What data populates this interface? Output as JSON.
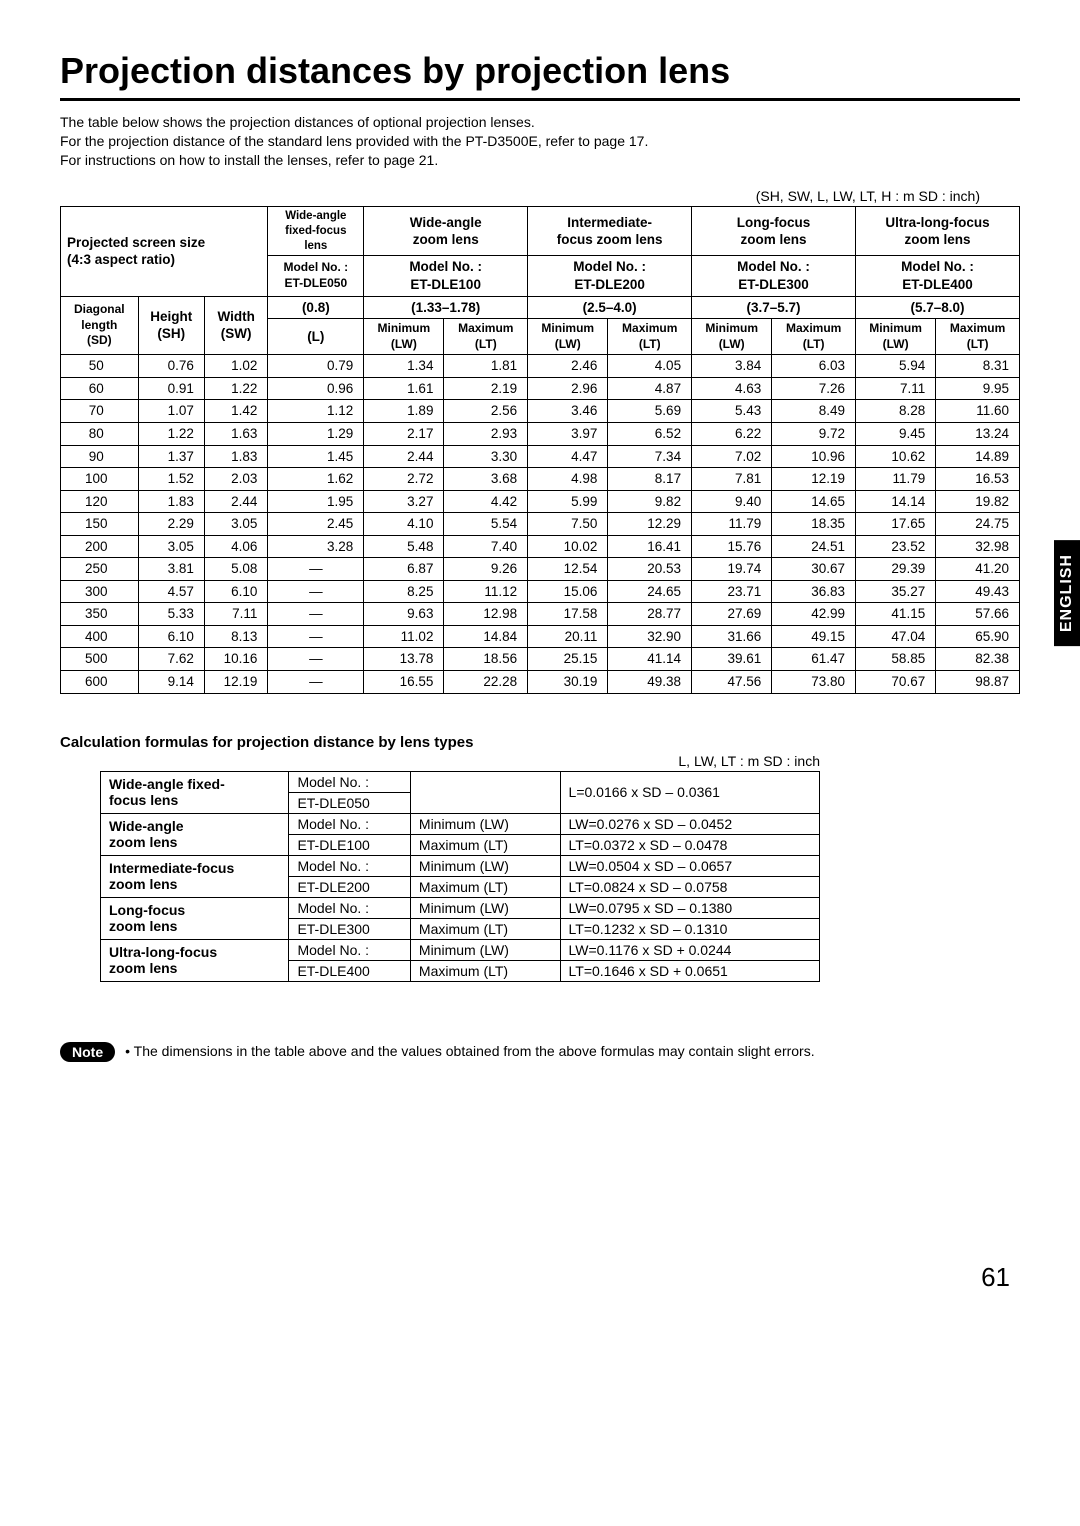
{
  "title": "Projection distances by projection lens",
  "intro_lines": [
    "The table below shows the projection distances of optional projection lenses.",
    "For the projection distance of the standard lens provided with the PT-D3500E, refer to page 17.",
    "For instructions on how to install the lenses, refer to page 21."
  ],
  "unit_note_main": "(SH, SW, L, LW, LT, H : m    SD : inch)",
  "side_tab": "ENGLISH",
  "page_number": "61",
  "main_table": {
    "lens_groups": [
      {
        "name_line1": "Wide-angle",
        "name_line2": "fixed-focus",
        "name_line3": "lens",
        "model_label": "Model No. :",
        "model": "ET-DLE050",
        "range": "(0.8)",
        "sub": [
          "(L)"
        ]
      },
      {
        "name_line1": "Wide-angle",
        "name_line2": "zoom lens",
        "model_label": "Model No. :",
        "model": "ET-DLE100",
        "range": "(1.33–1.78)",
        "sub": [
          "Minimum",
          "Maximum"
        ],
        "sub2": [
          "(LW)",
          "(LT)"
        ]
      },
      {
        "name_line1": "Intermediate-",
        "name_line2": "focus zoom lens",
        "model_label": "Model No. :",
        "model": "ET-DLE200",
        "range": "(2.5–4.0)",
        "sub": [
          "Minimum",
          "Maximum"
        ],
        "sub2": [
          "(LW)",
          "(LT)"
        ]
      },
      {
        "name_line1": "Long-focus",
        "name_line2": "zoom lens",
        "model_label": "Model No. :",
        "model": "ET-DLE300",
        "range": "(3.7–5.7)",
        "sub": [
          "Minimum",
          "Maximum"
        ],
        "sub2": [
          "(LW)",
          "(LT)"
        ]
      },
      {
        "name_line1": "Ultra-long-focus",
        "name_line2": "zoom lens",
        "model_label": "Model No. :",
        "model": "ET-DLE400",
        "range": "(5.7–8.0)",
        "sub": [
          "Minimum",
          "Maximum"
        ],
        "sub2": [
          "(LW)",
          "(LT)"
        ]
      }
    ],
    "screen_header_line1": "Projected screen size",
    "screen_header_line2": "(4:3 aspect ratio)",
    "screen_sub": {
      "diag_l1": "Diagonal",
      "diag_l2": "length",
      "diag_l3": "(SD)",
      "h_l1": "Height",
      "h_l2": "(SH)",
      "w_l1": "Width",
      "w_l2": "(SW)"
    },
    "rows": [
      {
        "sd": "50",
        "sh": "0.76",
        "sw": "1.02",
        "l": "0.79",
        "v": [
          "1.34",
          "1.81",
          "2.46",
          "4.05",
          "3.84",
          "6.03",
          "5.94",
          "8.31"
        ]
      },
      {
        "sd": "60",
        "sh": "0.91",
        "sw": "1.22",
        "l": "0.96",
        "v": [
          "1.61",
          "2.19",
          "2.96",
          "4.87",
          "4.63",
          "7.26",
          "7.11",
          "9.95"
        ]
      },
      {
        "sd": "70",
        "sh": "1.07",
        "sw": "1.42",
        "l": "1.12",
        "v": [
          "1.89",
          "2.56",
          "3.46",
          "5.69",
          "5.43",
          "8.49",
          "8.28",
          "11.60"
        ]
      },
      {
        "sd": "80",
        "sh": "1.22",
        "sw": "1.63",
        "l": "1.29",
        "v": [
          "2.17",
          "2.93",
          "3.97",
          "6.52",
          "6.22",
          "9.72",
          "9.45",
          "13.24"
        ]
      },
      {
        "sd": "90",
        "sh": "1.37",
        "sw": "1.83",
        "l": "1.45",
        "v": [
          "2.44",
          "3.30",
          "4.47",
          "7.34",
          "7.02",
          "10.96",
          "10.62",
          "14.89"
        ]
      },
      {
        "sd": "100",
        "sh": "1.52",
        "sw": "2.03",
        "l": "1.62",
        "v": [
          "2.72",
          "3.68",
          "4.98",
          "8.17",
          "7.81",
          "12.19",
          "11.79",
          "16.53"
        ]
      },
      {
        "sd": "120",
        "sh": "1.83",
        "sw": "2.44",
        "l": "1.95",
        "v": [
          "3.27",
          "4.42",
          "5.99",
          "9.82",
          "9.40",
          "14.65",
          "14.14",
          "19.82"
        ]
      },
      {
        "sd": "150",
        "sh": "2.29",
        "sw": "3.05",
        "l": "2.45",
        "v": [
          "4.10",
          "5.54",
          "7.50",
          "12.29",
          "11.79",
          "18.35",
          "17.65",
          "24.75"
        ]
      },
      {
        "sd": "200",
        "sh": "3.05",
        "sw": "4.06",
        "l": "3.28",
        "v": [
          "5.48",
          "7.40",
          "10.02",
          "16.41",
          "15.76",
          "24.51",
          "23.52",
          "32.98"
        ]
      },
      {
        "sd": "250",
        "sh": "3.81",
        "sw": "5.08",
        "l": "—",
        "v": [
          "6.87",
          "9.26",
          "12.54",
          "20.53",
          "19.74",
          "30.67",
          "29.39",
          "41.20"
        ]
      },
      {
        "sd": "300",
        "sh": "4.57",
        "sw": "6.10",
        "l": "—",
        "v": [
          "8.25",
          "11.12",
          "15.06",
          "24.65",
          "23.71",
          "36.83",
          "35.27",
          "49.43"
        ]
      },
      {
        "sd": "350",
        "sh": "5.33",
        "sw": "7.11",
        "l": "—",
        "v": [
          "9.63",
          "12.98",
          "17.58",
          "28.77",
          "27.69",
          "42.99",
          "41.15",
          "57.66"
        ]
      },
      {
        "sd": "400",
        "sh": "6.10",
        "sw": "8.13",
        "l": "—",
        "v": [
          "11.02",
          "14.84",
          "20.11",
          "32.90",
          "31.66",
          "49.15",
          "47.04",
          "65.90"
        ]
      },
      {
        "sd": "500",
        "sh": "7.62",
        "sw": "10.16",
        "l": "—",
        "v": [
          "13.78",
          "18.56",
          "25.15",
          "41.14",
          "39.61",
          "61.47",
          "58.85",
          "82.38"
        ]
      },
      {
        "sd": "600",
        "sh": "9.14",
        "sw": "12.19",
        "l": "—",
        "v": [
          "16.55",
          "22.28",
          "30.19",
          "49.38",
          "47.56",
          "73.80",
          "70.67",
          "98.87"
        ]
      }
    ]
  },
  "formula_heading": "Calculation formulas for projection distance by lens types",
  "unit_note_formula": "L, LW, LT : m    SD : inch",
  "formula_table": {
    "rows": [
      {
        "lens": "Wide-angle fixed-\nfocus lens",
        "model_label": "Model No. :",
        "model": "ET-DLE050",
        "pairs": [
          {
            "mm": "",
            "f": "L=0.0166 x SD – 0.0361"
          }
        ]
      },
      {
        "lens": "Wide-angle\nzoom lens",
        "model_label": "Model No. :",
        "model": "ET-DLE100",
        "pairs": [
          {
            "mm": "Minimum (LW)",
            "f": "LW=0.0276 x SD – 0.0452"
          },
          {
            "mm": "Maximum (LT)",
            "f": "LT=0.0372 x SD – 0.0478"
          }
        ]
      },
      {
        "lens": "Intermediate-focus\nzoom lens",
        "model_label": "Model No. :",
        "model": "ET-DLE200",
        "pairs": [
          {
            "mm": "Minimum (LW)",
            "f": "LW=0.0504 x SD – 0.0657"
          },
          {
            "mm": "Maximum (LT)",
            "f": "LT=0.0824 x SD – 0.0758"
          }
        ]
      },
      {
        "lens": "Long-focus\nzoom lens",
        "model_label": "Model No. :",
        "model": "ET-DLE300",
        "pairs": [
          {
            "mm": "Minimum (LW)",
            "f": "LW=0.0795 x SD – 0.1380"
          },
          {
            "mm": "Maximum (LT)",
            "f": "LT=0.1232 x SD – 0.1310"
          }
        ]
      },
      {
        "lens": "Ultra-long-focus\nzoom lens",
        "model_label": "Model No. :",
        "model": "ET-DLE400",
        "pairs": [
          {
            "mm": "Minimum (LW)",
            "f": "LW=0.1176 x SD + 0.0244"
          },
          {
            "mm": "Maximum (LT)",
            "f": "LT=0.1646 x SD + 0.0651"
          }
        ]
      }
    ]
  },
  "note": {
    "label": "Note",
    "text": "• The dimensions in the table above and the values obtained from the above formulas may contain slight errors."
  }
}
